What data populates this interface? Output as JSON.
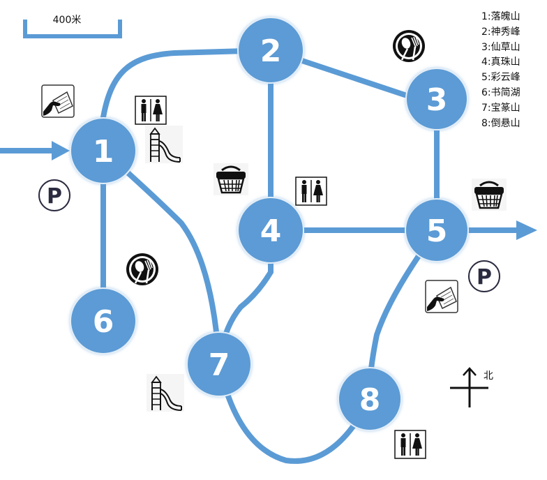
{
  "scale_bar": {
    "label": "400米"
  },
  "north_arrow": {
    "label": "北"
  },
  "nodes": [
    {
      "id": "1",
      "label": "1"
    },
    {
      "id": "2",
      "label": "2"
    },
    {
      "id": "3",
      "label": "3"
    },
    {
      "id": "4",
      "label": "4"
    },
    {
      "id": "5",
      "label": "5"
    },
    {
      "id": "6",
      "label": "6"
    },
    {
      "id": "7",
      "label": "7"
    },
    {
      "id": "8",
      "label": "8"
    }
  ],
  "legend": {
    "items": [
      "1:落魄山",
      "2:神秀峰",
      "3:仙草山",
      "4:真珠山",
      "5:彩云峰",
      "6:书简湖",
      "7:宝篆山",
      "8:倒悬山"
    ]
  },
  "icons": [
    "restroom-icon",
    "playground-icon",
    "ticket-icon",
    "parking-icon",
    "shopping-basket-icon",
    "restaurant-icon",
    "entrance-arrow-icon",
    "exit-arrow-icon"
  ],
  "colors": {
    "route": "#5b9bd5",
    "node": "#5b9bd5",
    "node_text": "#ffffff",
    "icon": "#111111"
  }
}
